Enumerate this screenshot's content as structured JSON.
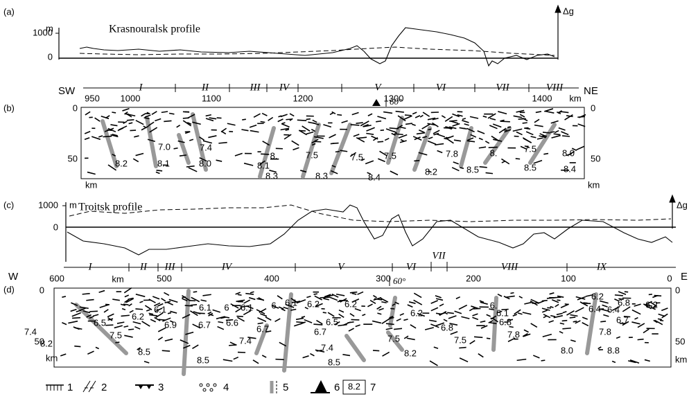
{
  "panel_a": {
    "label": "(a)",
    "title": "Krasnouralsk profile",
    "y_ticks": [
      "1000",
      "0"
    ],
    "unit": "m",
    "anomaly_label": "Δg"
  },
  "zones_ab": {
    "left": "SW",
    "right": "NE",
    "zones": [
      "I",
      "II",
      "III",
      "IV",
      "V",
      "VI",
      "VII",
      "VIII"
    ]
  },
  "panel_b": {
    "label": "(b)",
    "distance_ticks": [
      "950",
      "1000",
      "1100",
      "1200",
      "1300",
      "1400"
    ],
    "distance_unit": "km",
    "depth_ticks": [
      "0",
      "50"
    ],
    "depth_unit": "km",
    "dip": "60°",
    "velocities": [
      "7.0",
      "7.4",
      "8.2",
      "8.1",
      "8.0",
      "8.1",
      "8.3",
      "8.3",
      "8.4",
      "8.",
      "7.5",
      "7.5",
      "7.5",
      "7.8",
      "8.",
      "7.5",
      "8.0",
      "8.2",
      "8.5",
      "8.5",
      "8.4"
    ]
  },
  "panel_c": {
    "label": "(c)",
    "title": "Troitsk profile",
    "y_ticks": [
      "1000",
      "0"
    ],
    "unit": "m",
    "anomaly_label": "Δg"
  },
  "zones_cd": {
    "left": "W",
    "right": "E",
    "zones": [
      "I",
      "II",
      "III",
      "IV",
      "V",
      "VI",
      "VII",
      "VIII",
      "IX"
    ]
  },
  "panel_d": {
    "label": "(d)",
    "distance_ticks": [
      "600",
      "500",
      "400",
      "300",
      "200",
      "100",
      "0"
    ],
    "distance_unit": "km",
    "depth_ticks": [
      "0",
      "50"
    ],
    "depth_unit": "km",
    "dip": "60°",
    "velocities": [
      "6.1",
      "6.1",
      "6",
      "6.1",
      "6",
      "6.1",
      "6.2",
      "6.2",
      "6.2",
      "6.9",
      "6.7",
      "6.6",
      "6.7",
      "6.7",
      "6.5",
      "6.2",
      "6.",
      "6.1",
      "6.8",
      "6.8",
      "6.2",
      "6.4",
      "6.4",
      "6.8",
      "6.2",
      "6.7",
      "7.8",
      "7.8",
      "7.5",
      "7.5",
      "7.4",
      "7.4",
      "7.4",
      "7.5",
      "6.5",
      "8.2",
      "8.5",
      "8.5",
      "8.5",
      "8.2",
      "8.0",
      "8.8"
    ]
  },
  "legend": {
    "items": [
      "1",
      "2",
      "3",
      "4",
      "5",
      "6"
    ],
    "box_value": "8.2",
    "box_item": "7"
  }
}
